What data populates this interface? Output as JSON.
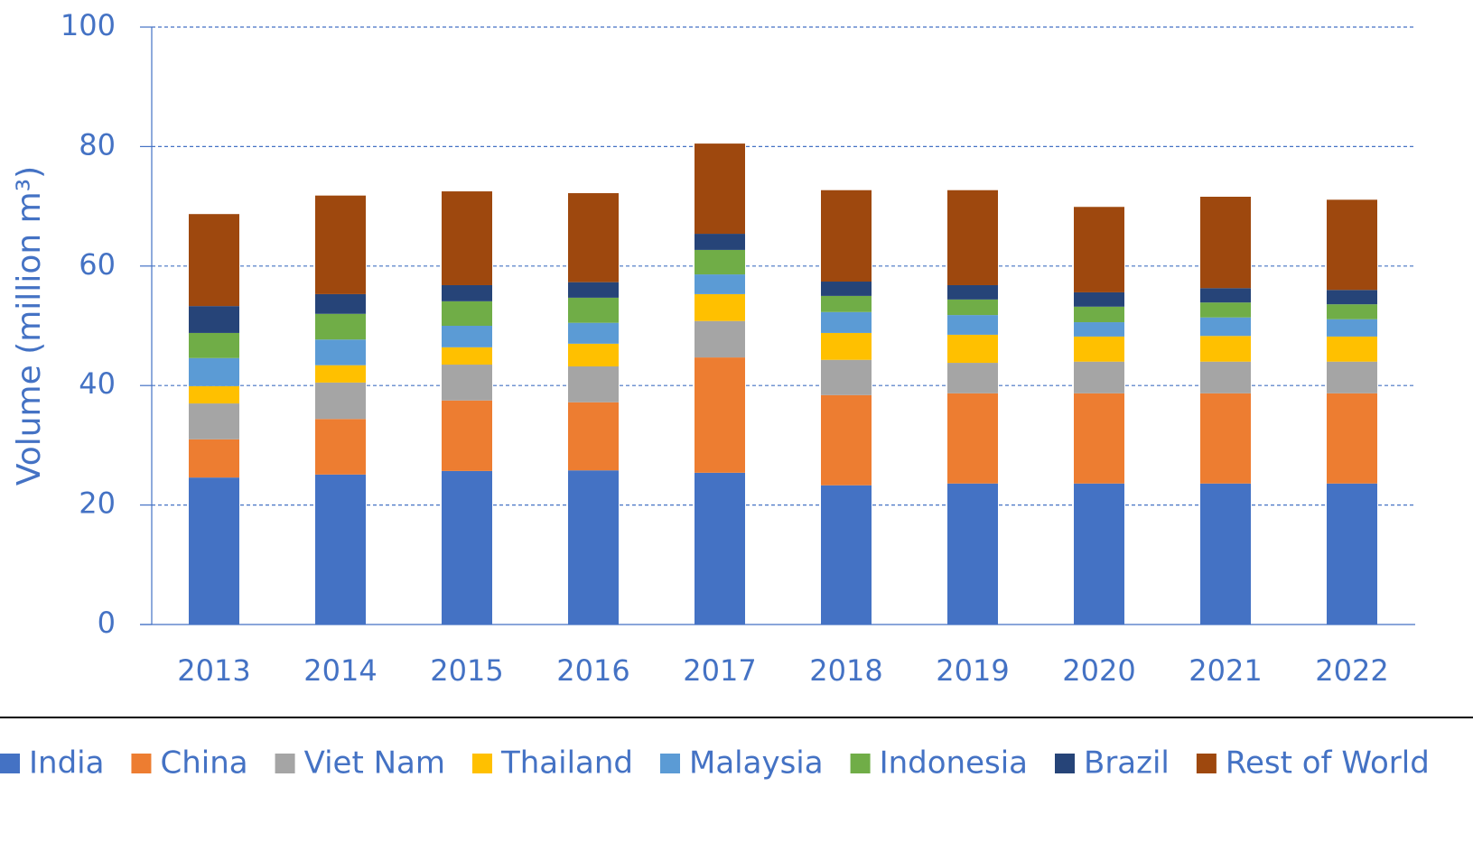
{
  "chart_data": {
    "type": "stacked_bar",
    "y_label": "Volume (million m³)",
    "categories": [
      "2013",
      "2014",
      "2015",
      "2016",
      "2017",
      "2018",
      "2019",
      "2020",
      "2021",
      "2022"
    ],
    "series": [
      {
        "name": "India",
        "color": "#4472c4",
        "values": [
          24.6,
          25.1,
          25.7,
          25.8,
          25.4,
          23.3,
          23.6,
          23.6,
          23.6,
          23.6
        ]
      },
      {
        "name": "China",
        "color": "#ed7d31",
        "values": [
          6.4,
          9.3,
          11.8,
          11.4,
          19.3,
          15.1,
          15.1,
          15.1,
          15.1,
          15.1
        ]
      },
      {
        "name": "Viet Nam",
        "color": "#a5a5a5",
        "values": [
          6.0,
          6.1,
          6.0,
          6.0,
          6.1,
          5.9,
          5.1,
          5.3,
          5.3,
          5.3
        ]
      },
      {
        "name": "Thailand",
        "color": "#ffc000",
        "values": [
          2.9,
          2.9,
          2.9,
          3.8,
          4.5,
          4.5,
          4.7,
          4.2,
          4.3,
          4.2
        ]
      },
      {
        "name": "Malaysia",
        "color": "#5b9bd5",
        "values": [
          4.7,
          4.3,
          3.6,
          3.5,
          3.3,
          3.5,
          3.3,
          2.4,
          3.1,
          2.9
        ]
      },
      {
        "name": "Indonesia",
        "color": "#70ad47",
        "values": [
          4.2,
          4.3,
          4.1,
          4.2,
          4.1,
          2.7,
          2.6,
          2.6,
          2.5,
          2.5
        ]
      },
      {
        "name": "Brazil",
        "color": "#264478",
        "values": [
          4.5,
          3.3,
          2.7,
          2.6,
          2.7,
          2.4,
          2.4,
          2.4,
          2.4,
          2.4
        ]
      },
      {
        "name": "Rest of World",
        "color": "#9e480e",
        "values": [
          15.4,
          16.5,
          15.7,
          14.9,
          15.1,
          15.3,
          15.9,
          14.3,
          15.3,
          15.1
        ]
      }
    ],
    "ylim": [
      0,
      100
    ],
    "yticks": [
      0,
      20,
      40,
      60,
      80,
      100
    ],
    "grid": true,
    "legend": "bottom"
  }
}
